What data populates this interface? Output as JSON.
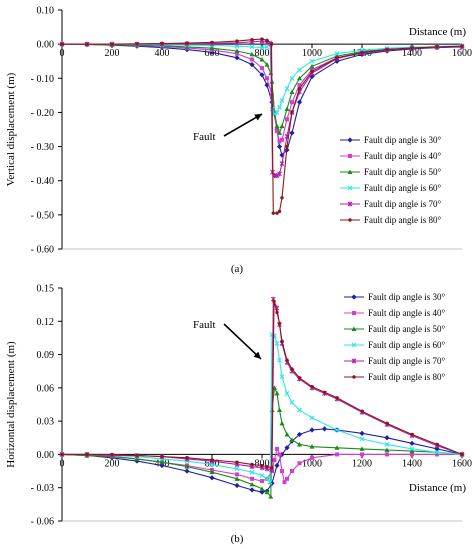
{
  "chart_data": [
    {
      "type": "line",
      "panel_label": "(a)",
      "xlabel": "Distance (m)",
      "ylabel": "Vertical displacement (m)",
      "xlim": [
        0,
        1600
      ],
      "ylim": [
        -0.6,
        0.1
      ],
      "xticks": [
        0,
        200,
        400,
        600,
        800,
        1000,
        1200,
        1400,
        1600
      ],
      "yticks": [
        0.1,
        0.0,
        -0.1,
        -0.2,
        -0.3,
        -0.4,
        -0.5,
        -0.6
      ],
      "ytick_labels": [
        "0.10",
        "0.00",
        "- 0.10",
        "- 0.20",
        "- 0.30",
        "- 0.40",
        "- 0.50",
        "- 0.60"
      ],
      "xaxis_at_y": 0,
      "annotation": {
        "text": "Fault",
        "x": 842,
        "y": -0.205
      },
      "legend_position": "bottom-right",
      "series": [
        {
          "name": "Fault dip angle is 30°",
          "color": "#1f1fa0",
          "marker": "diamond",
          "x": [
            0,
            100,
            200,
            300,
            400,
            500,
            600,
            700,
            760,
            800,
            820,
            840,
            860,
            870,
            880,
            900,
            920,
            950,
            1000,
            1100,
            1200,
            1300,
            1400,
            1500,
            1600
          ],
          "y": [
            0.0,
            -0.001,
            -0.003,
            -0.006,
            -0.01,
            -0.016,
            -0.024,
            -0.04,
            -0.06,
            -0.09,
            -0.12,
            -0.17,
            -0.25,
            -0.3,
            -0.325,
            -0.31,
            -0.26,
            -0.17,
            -0.095,
            -0.05,
            -0.03,
            -0.02,
            -0.014,
            -0.01,
            -0.008
          ]
        },
        {
          "name": "Fault dip angle is 40°",
          "color": "#d13fd1",
          "marker": "square",
          "x": [
            0,
            100,
            200,
            300,
            400,
            500,
            600,
            700,
            760,
            800,
            820,
            840,
            850,
            860,
            870,
            880,
            900,
            920,
            950,
            1000,
            1100,
            1200,
            1300,
            1400,
            1500,
            1600
          ],
          "y": [
            0.0,
            -0.001,
            -0.002,
            -0.004,
            -0.007,
            -0.011,
            -0.017,
            -0.028,
            -0.045,
            -0.07,
            -0.1,
            -0.15,
            -0.2,
            -0.255,
            -0.285,
            -0.28,
            -0.22,
            -0.17,
            -0.12,
            -0.075,
            -0.04,
            -0.025,
            -0.017,
            -0.012,
            -0.009,
            -0.007
          ]
        },
        {
          "name": "Fault dip angle is 50°",
          "color": "#1a8a1a",
          "marker": "triangle",
          "x": [
            0,
            100,
            200,
            300,
            400,
            500,
            600,
            700,
            760,
            800,
            820,
            835,
            840,
            850,
            860,
            870,
            880,
            900,
            920,
            950,
            1000,
            1100,
            1200,
            1300,
            1400,
            1500,
            1600
          ],
          "y": [
            0.0,
            -0.001,
            -0.002,
            -0.003,
            -0.005,
            -0.008,
            -0.012,
            -0.02,
            -0.03,
            -0.045,
            -0.06,
            -0.085,
            -0.11,
            -0.2,
            -0.24,
            -0.26,
            -0.24,
            -0.19,
            -0.14,
            -0.1,
            -0.065,
            -0.035,
            -0.022,
            -0.015,
            -0.011,
            -0.008,
            -0.006
          ]
        },
        {
          "name": "Fault dip angle is 60°",
          "color": "#33e6e6",
          "marker": "cross",
          "x": [
            0,
            100,
            200,
            300,
            400,
            500,
            600,
            700,
            760,
            800,
            820,
            832,
            840,
            850,
            860,
            870,
            880,
            900,
            920,
            950,
            1000,
            1100,
            1200,
            1300,
            1400,
            1500,
            1600
          ],
          "y": [
            0.0,
            0.0,
            0.0,
            -0.001,
            -0.002,
            -0.003,
            -0.004,
            -0.006,
            -0.008,
            -0.01,
            -0.008,
            0.005,
            -0.19,
            -0.205,
            -0.2,
            -0.185,
            -0.165,
            -0.13,
            -0.1,
            -0.075,
            -0.05,
            -0.028,
            -0.018,
            -0.012,
            -0.009,
            -0.007,
            -0.005
          ]
        },
        {
          "name": "Fault dip angle is 70°",
          "color": "#b01fb0",
          "marker": "star",
          "x": [
            0,
            100,
            200,
            300,
            400,
            500,
            600,
            700,
            760,
            800,
            820,
            835,
            842,
            850,
            860,
            870,
            880,
            900,
            920,
            950,
            1000,
            1100,
            1200,
            1300,
            1400,
            1500,
            1600
          ],
          "y": [
            0.0,
            0.0,
            0.0,
            0.0,
            0.0,
            0.001,
            0.002,
            0.004,
            0.007,
            0.009,
            0.005,
            0.0,
            -0.375,
            -0.385,
            -0.385,
            -0.38,
            -0.35,
            -0.27,
            -0.2,
            -0.14,
            -0.085,
            -0.042,
            -0.026,
            -0.017,
            -0.012,
            -0.009,
            -0.007
          ]
        },
        {
          "name": "Fault dip angle is 80°",
          "color": "#8b1a1a",
          "marker": "circle",
          "x": [
            0,
            100,
            200,
            300,
            400,
            500,
            600,
            700,
            760,
            800,
            820,
            838,
            845,
            860,
            870,
            880,
            900,
            920,
            950,
            1000,
            1100,
            1200,
            1300,
            1400,
            1500,
            1600
          ],
          "y": [
            0.0,
            0.0,
            0.0,
            0.001,
            0.002,
            0.003,
            0.005,
            0.009,
            0.013,
            0.015,
            0.011,
            0.002,
            -0.495,
            -0.495,
            -0.49,
            -0.45,
            -0.3,
            -0.2,
            -0.13,
            -0.08,
            -0.04,
            -0.025,
            -0.016,
            -0.011,
            -0.008,
            -0.006
          ]
        }
      ]
    },
    {
      "type": "line",
      "panel_label": "(b)",
      "xlabel": "Distance (m)",
      "ylabel": "Horizontal displacement (m)",
      "xlim": [
        0,
        1600
      ],
      "ylim": [
        -0.06,
        0.15
      ],
      "xticks": [
        0,
        200,
        400,
        600,
        800,
        1000,
        1200,
        1400,
        1600
      ],
      "yticks": [
        0.15,
        0.12,
        0.09,
        0.06,
        0.03,
        0.0,
        -0.03,
        -0.06
      ],
      "ytick_labels": [
        "0.15",
        "0.12",
        "0.09",
        "0.06",
        "0.03",
        "0.00",
        "- 0.03",
        "- 0.06"
      ],
      "xaxis_at_y": 0,
      "annotation": {
        "text": "Fault",
        "x": 835,
        "y": 0.1
      },
      "legend_position": "top-right",
      "series": [
        {
          "name": "Fault dip angle is 30°",
          "color": "#1f1fa0",
          "marker": "diamond",
          "x": [
            0,
            100,
            200,
            300,
            400,
            500,
            600,
            700,
            760,
            800,
            820,
            840,
            860,
            880,
            900,
            920,
            950,
            1000,
            1050,
            1100,
            1200,
            1300,
            1400,
            1500,
            1600
          ],
          "y": [
            0.0,
            -0.001,
            -0.003,
            -0.006,
            -0.01,
            -0.015,
            -0.021,
            -0.028,
            -0.032,
            -0.034,
            -0.033,
            -0.026,
            -0.01,
            0.0,
            0.006,
            0.012,
            0.018,
            0.022,
            0.023,
            0.022,
            0.019,
            0.015,
            0.01,
            0.005,
            0.0
          ]
        },
        {
          "name": "Fault dip angle is 40°",
          "color": "#d13fd1",
          "marker": "square",
          "x": [
            0,
            100,
            200,
            300,
            400,
            500,
            600,
            700,
            760,
            800,
            820,
            840,
            850,
            860,
            870,
            880,
            890,
            900,
            920,
            950,
            1000,
            1100,
            1200,
            1300,
            1400,
            1500,
            1600
          ],
          "y": [
            0.0,
            -0.001,
            -0.002,
            -0.004,
            -0.007,
            -0.01,
            -0.014,
            -0.018,
            -0.022,
            -0.024,
            -0.022,
            -0.015,
            -0.005,
            0.005,
            0.0,
            -0.015,
            -0.025,
            -0.022,
            -0.015,
            -0.008,
            -0.003,
            0.0,
            0.0,
            0.0,
            0.0,
            0.0,
            0.0
          ]
        },
        {
          "name": "Fault dip angle is 50°",
          "color": "#1a8a1a",
          "marker": "triangle",
          "x": [
            0,
            100,
            200,
            300,
            400,
            500,
            600,
            700,
            760,
            800,
            820,
            835,
            840,
            850,
            860,
            870,
            880,
            900,
            920,
            950,
            1000,
            1100,
            1200,
            1300,
            1400,
            1500,
            1600
          ],
          "y": [
            0.0,
            -0.001,
            -0.002,
            -0.004,
            -0.007,
            -0.011,
            -0.016,
            -0.022,
            -0.027,
            -0.031,
            -0.034,
            -0.038,
            0.04,
            0.06,
            0.055,
            0.04,
            0.028,
            0.018,
            0.013,
            0.009,
            0.007,
            0.006,
            0.005,
            0.004,
            0.003,
            0.002,
            0.0
          ]
        },
        {
          "name": "Fault dip angle is 60°",
          "color": "#33e6e6",
          "marker": "cross",
          "x": [
            0,
            100,
            200,
            300,
            400,
            500,
            600,
            700,
            760,
            800,
            820,
            832,
            840,
            850,
            860,
            870,
            880,
            900,
            920,
            950,
            1000,
            1100,
            1200,
            1300,
            1400,
            1500,
            1600
          ],
          "y": [
            0.0,
            0.0,
            -0.001,
            -0.002,
            -0.004,
            -0.006,
            -0.009,
            -0.013,
            -0.016,
            -0.019,
            -0.022,
            -0.025,
            0.108,
            0.107,
            0.1,
            0.085,
            0.07,
            0.055,
            0.047,
            0.04,
            0.033,
            0.022,
            0.014,
            0.009,
            0.005,
            0.002,
            0.0
          ]
        },
        {
          "name": "Fault dip angle is 70°",
          "color": "#b01fb0",
          "marker": "star",
          "x": [
            0,
            100,
            200,
            300,
            400,
            500,
            600,
            700,
            760,
            800,
            820,
            838,
            845,
            860,
            870,
            880,
            900,
            920,
            950,
            1000,
            1050,
            1100,
            1200,
            1300,
            1400,
            1500,
            1600
          ],
          "y": [
            0.0,
            0.0,
            -0.001,
            -0.001,
            -0.002,
            -0.004,
            -0.006,
            -0.009,
            -0.011,
            -0.012,
            -0.013,
            -0.014,
            0.14,
            0.132,
            0.117,
            0.1,
            0.083,
            0.075,
            0.068,
            0.06,
            0.055,
            0.05,
            0.038,
            0.027,
            0.017,
            0.008,
            0.0
          ]
        },
        {
          "name": "Fault dip angle is 80°",
          "color": "#8b1a1a",
          "marker": "circle",
          "x": [
            0,
            100,
            200,
            300,
            400,
            500,
            600,
            700,
            760,
            800,
            820,
            840,
            848,
            860,
            870,
            880,
            900,
            920,
            950,
            1000,
            1050,
            1100,
            1200,
            1300,
            1400,
            1500,
            1600
          ],
          "y": [
            0.0,
            0.0,
            0.0,
            -0.001,
            -0.002,
            -0.003,
            -0.005,
            -0.007,
            -0.009,
            -0.01,
            -0.011,
            -0.012,
            0.138,
            0.128,
            0.118,
            0.102,
            0.085,
            0.077,
            0.069,
            0.061,
            0.056,
            0.051,
            0.039,
            0.028,
            0.018,
            0.009,
            0.0
          ]
        }
      ]
    }
  ]
}
